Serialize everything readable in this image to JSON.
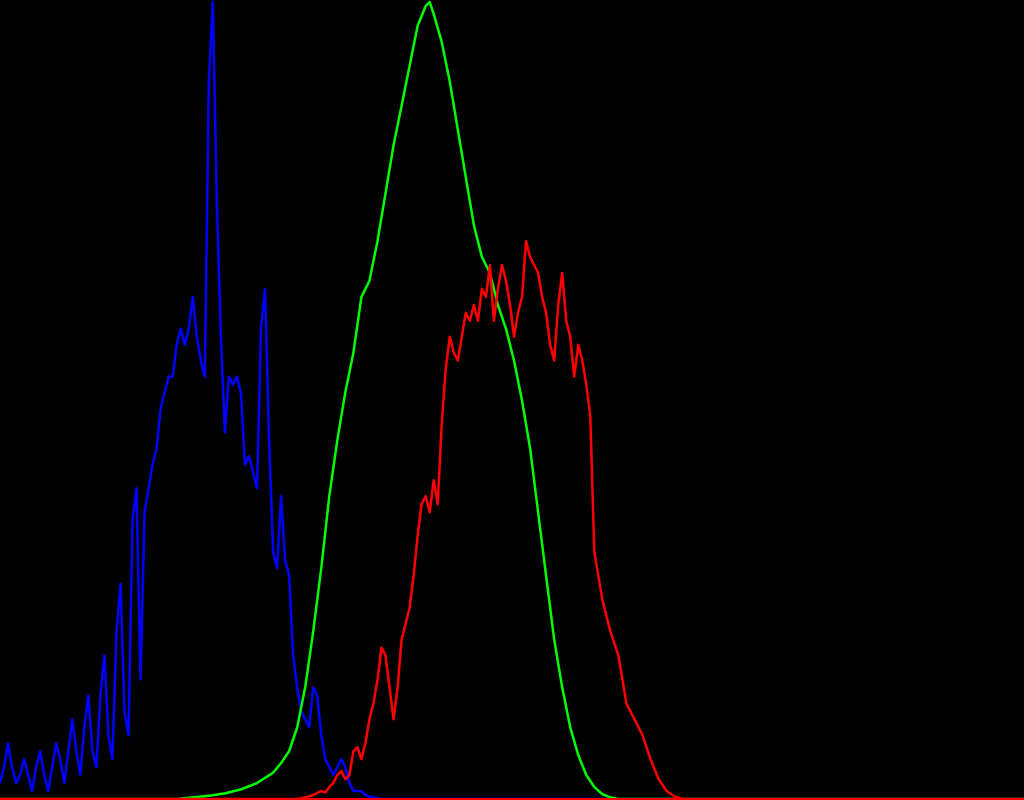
{
  "chart_data": {
    "type": "line",
    "title": "",
    "xlabel": "",
    "ylabel": "",
    "xlim": [
      0,
      255
    ],
    "ylim": [
      0,
      1
    ],
    "grid": false,
    "background": "#000000",
    "series": [
      {
        "color": "#0000ff",
        "points": [
          [
            0,
            0.02
          ],
          [
            1,
            0.04
          ],
          [
            2,
            0.07
          ],
          [
            3,
            0.04
          ],
          [
            4,
            0.02
          ],
          [
            5,
            0.03
          ],
          [
            6,
            0.05
          ],
          [
            7,
            0.03
          ],
          [
            8,
            0.01
          ],
          [
            9,
            0.04
          ],
          [
            10,
            0.06
          ],
          [
            11,
            0.03
          ],
          [
            12,
            0.01
          ],
          [
            13,
            0.04
          ],
          [
            14,
            0.07
          ],
          [
            15,
            0.05
          ],
          [
            16,
            0.02
          ],
          [
            17,
            0.06
          ],
          [
            18,
            0.1
          ],
          [
            19,
            0.06
          ],
          [
            20,
            0.03
          ],
          [
            21,
            0.09
          ],
          [
            22,
            0.13
          ],
          [
            23,
            0.06
          ],
          [
            24,
            0.04
          ],
          [
            25,
            0.13
          ],
          [
            26,
            0.18
          ],
          [
            27,
            0.08
          ],
          [
            28,
            0.05
          ],
          [
            29,
            0.21
          ],
          [
            30,
            0.27
          ],
          [
            31,
            0.11
          ],
          [
            32,
            0.08
          ],
          [
            33,
            0.35
          ],
          [
            34,
            0.39
          ],
          [
            35,
            0.15
          ],
          [
            36,
            0.36
          ],
          [
            37,
            0.39
          ],
          [
            38,
            0.42
          ],
          [
            39,
            0.44
          ],
          [
            40,
            0.49
          ],
          [
            41,
            0.51
          ],
          [
            42,
            0.53
          ],
          [
            43,
            0.53
          ],
          [
            44,
            0.57
          ],
          [
            45,
            0.59
          ],
          [
            46,
            0.57
          ],
          [
            47,
            0.59
          ],
          [
            48,
            0.63
          ],
          [
            49,
            0.58
          ],
          [
            50,
            0.55
          ],
          [
            51,
            0.53
          ],
          [
            52,
            0.9
          ],
          [
            53,
            1.0
          ],
          [
            54,
            0.75
          ],
          [
            55,
            0.58
          ],
          [
            56,
            0.46
          ],
          [
            57,
            0.53
          ],
          [
            58,
            0.52
          ],
          [
            59,
            0.53
          ],
          [
            60,
            0.51
          ],
          [
            61,
            0.42
          ],
          [
            62,
            0.43
          ],
          [
            63,
            0.41
          ],
          [
            64,
            0.39
          ],
          [
            65,
            0.59
          ],
          [
            66,
            0.64
          ],
          [
            67,
            0.45
          ],
          [
            68,
            0.31
          ],
          [
            69,
            0.29
          ],
          [
            70,
            0.38
          ],
          [
            71,
            0.3
          ],
          [
            72,
            0.28
          ],
          [
            73,
            0.18
          ],
          [
            74,
            0.14
          ],
          [
            75,
            0.11
          ],
          [
            76,
            0.1
          ],
          [
            77,
            0.09
          ],
          [
            78,
            0.14
          ],
          [
            79,
            0.13
          ],
          [
            80,
            0.08
          ],
          [
            81,
            0.05
          ],
          [
            82,
            0.04
          ],
          [
            83,
            0.03
          ],
          [
            84,
            0.04
          ],
          [
            85,
            0.05
          ],
          [
            86,
            0.04
          ],
          [
            87,
            0.02
          ],
          [
            88,
            0.01
          ],
          [
            89,
            0.01
          ],
          [
            90,
            0.01
          ],
          [
            91,
            0.005
          ],
          [
            92,
            0.003
          ],
          [
            93,
            0.002
          ],
          [
            94,
            0.001
          ],
          [
            95,
            0.0
          ],
          [
            120,
            0.0
          ],
          [
            255,
            0.0
          ]
        ]
      },
      {
        "color": "#00ff00",
        "points": [
          [
            0,
            0.0
          ],
          [
            40,
            0.0
          ],
          [
            44,
            0.0
          ],
          [
            48,
            0.002
          ],
          [
            52,
            0.004
          ],
          [
            56,
            0.007
          ],
          [
            60,
            0.012
          ],
          [
            64,
            0.02
          ],
          [
            68,
            0.033
          ],
          [
            70,
            0.045
          ],
          [
            72,
            0.06
          ],
          [
            74,
            0.09
          ],
          [
            76,
            0.14
          ],
          [
            78,
            0.21
          ],
          [
            80,
            0.29
          ],
          [
            82,
            0.38
          ],
          [
            84,
            0.45
          ],
          [
            86,
            0.51
          ],
          [
            88,
            0.56
          ],
          [
            90,
            0.63
          ],
          [
            92,
            0.65
          ],
          [
            94,
            0.7
          ],
          [
            96,
            0.76
          ],
          [
            98,
            0.82
          ],
          [
            100,
            0.87
          ],
          [
            102,
            0.92
          ],
          [
            104,
            0.97
          ],
          [
            106,
            0.995
          ],
          [
            107,
            1.0
          ],
          [
            108,
            0.985
          ],
          [
            110,
            0.95
          ],
          [
            112,
            0.9
          ],
          [
            114,
            0.84
          ],
          [
            116,
            0.78
          ],
          [
            118,
            0.72
          ],
          [
            120,
            0.68
          ],
          [
            122,
            0.66
          ],
          [
            124,
            0.62
          ],
          [
            126,
            0.59
          ],
          [
            128,
            0.55
          ],
          [
            130,
            0.5
          ],
          [
            132,
            0.44
          ],
          [
            134,
            0.36
          ],
          [
            136,
            0.28
          ],
          [
            138,
            0.2
          ],
          [
            140,
            0.14
          ],
          [
            142,
            0.09
          ],
          [
            144,
            0.055
          ],
          [
            146,
            0.03
          ],
          [
            148,
            0.015
          ],
          [
            150,
            0.006
          ],
          [
            152,
            0.002
          ],
          [
            154,
            0.0
          ],
          [
            255,
            0.0
          ]
        ]
      },
      {
        "color": "#ff0000",
        "points": [
          [
            0,
            0.0
          ],
          [
            70,
            0.0
          ],
          [
            74,
            0.0
          ],
          [
            76,
            0.002
          ],
          [
            78,
            0.005
          ],
          [
            80,
            0.01
          ],
          [
            81,
            0.008
          ],
          [
            82,
            0.015
          ],
          [
            83,
            0.02
          ],
          [
            84,
            0.03
          ],
          [
            85,
            0.035
          ],
          [
            86,
            0.025
          ],
          [
            87,
            0.03
          ],
          [
            88,
            0.06
          ],
          [
            89,
            0.065
          ],
          [
            90,
            0.05
          ],
          [
            91,
            0.07
          ],
          [
            92,
            0.1
          ],
          [
            93,
            0.12
          ],
          [
            94,
            0.15
          ],
          [
            95,
            0.19
          ],
          [
            96,
            0.18
          ],
          [
            97,
            0.14
          ],
          [
            98,
            0.1
          ],
          [
            99,
            0.14
          ],
          [
            100,
            0.2
          ],
          [
            101,
            0.22
          ],
          [
            102,
            0.24
          ],
          [
            103,
            0.28
          ],
          [
            104,
            0.33
          ],
          [
            105,
            0.37
          ],
          [
            106,
            0.38
          ],
          [
            107,
            0.36
          ],
          [
            108,
            0.4
          ],
          [
            109,
            0.37
          ],
          [
            110,
            0.47
          ],
          [
            111,
            0.54
          ],
          [
            112,
            0.58
          ],
          [
            113,
            0.56
          ],
          [
            114,
            0.55
          ],
          [
            115,
            0.58
          ],
          [
            116,
            0.61
          ],
          [
            117,
            0.6
          ],
          [
            118,
            0.62
          ],
          [
            119,
            0.6
          ],
          [
            120,
            0.64
          ],
          [
            121,
            0.63
          ],
          [
            122,
            0.67
          ],
          [
            123,
            0.6
          ],
          [
            124,
            0.64
          ],
          [
            125,
            0.67
          ],
          [
            126,
            0.65
          ],
          [
            127,
            0.62
          ],
          [
            128,
            0.58
          ],
          [
            129,
            0.61
          ],
          [
            130,
            0.63
          ],
          [
            131,
            0.7
          ],
          [
            132,
            0.68
          ],
          [
            133,
            0.67
          ],
          [
            134,
            0.66
          ],
          [
            135,
            0.63
          ],
          [
            136,
            0.61
          ],
          [
            137,
            0.57
          ],
          [
            138,
            0.55
          ],
          [
            139,
            0.62
          ],
          [
            140,
            0.66
          ],
          [
            141,
            0.6
          ],
          [
            142,
            0.58
          ],
          [
            143,
            0.53
          ],
          [
            144,
            0.57
          ],
          [
            145,
            0.55
          ],
          [
            146,
            0.52
          ],
          [
            147,
            0.48
          ],
          [
            148,
            0.31
          ],
          [
            149,
            0.28
          ],
          [
            150,
            0.25
          ],
          [
            151,
            0.23
          ],
          [
            152,
            0.21
          ],
          [
            154,
            0.18
          ],
          [
            156,
            0.12
          ],
          [
            158,
            0.1
          ],
          [
            160,
            0.08
          ],
          [
            162,
            0.05
          ],
          [
            164,
            0.025
          ],
          [
            166,
            0.01
          ],
          [
            168,
            0.003
          ],
          [
            170,
            0.0
          ],
          [
            255,
            0.0
          ]
        ]
      }
    ]
  }
}
